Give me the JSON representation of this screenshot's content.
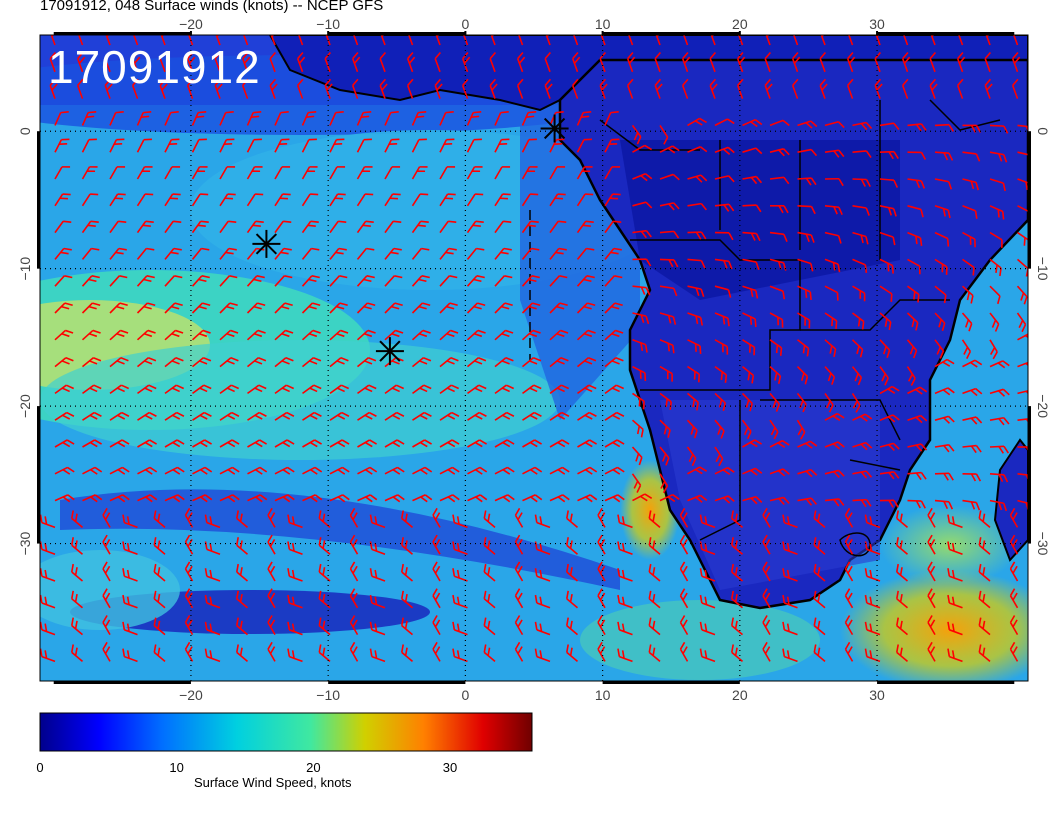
{
  "header": {
    "title": "17091912, 048 Surface winds (knots) -- NCEP GFS",
    "stamp": "17091912"
  },
  "map": {
    "lon_range": [
      -31,
      41
    ],
    "lat_range": [
      -40,
      7
    ],
    "lon_ticks": [
      "-20",
      "-10",
      "0",
      "10",
      "20",
      "30"
    ],
    "lat_ticks": [
      "0",
      "-10",
      "-20",
      "-30"
    ],
    "gridlines": "dotted",
    "field": "Surface Wind Speed",
    "units": "knots",
    "markers": [
      {
        "name": "marker-1",
        "lon": 6.5,
        "lat": 0.2
      },
      {
        "name": "marker-2",
        "lon": -14.5,
        "lat": -8.2
      },
      {
        "name": "marker-3",
        "lon": -5.5,
        "lat": -16.0
      }
    ],
    "barb_color": "#ff0000",
    "coast_color": "#000000"
  },
  "colorbar": {
    "title": "Surface Wind Speed, knots",
    "ticks": [
      "0",
      "10",
      "20",
      "30"
    ],
    "range": [
      0,
      36
    ],
    "colors": [
      "#00008b",
      "#0000ff",
      "#0080ff",
      "#00cfe0",
      "#40e0a0",
      "#c8c800",
      "#ff8000",
      "#e00000",
      "#800000"
    ]
  }
}
